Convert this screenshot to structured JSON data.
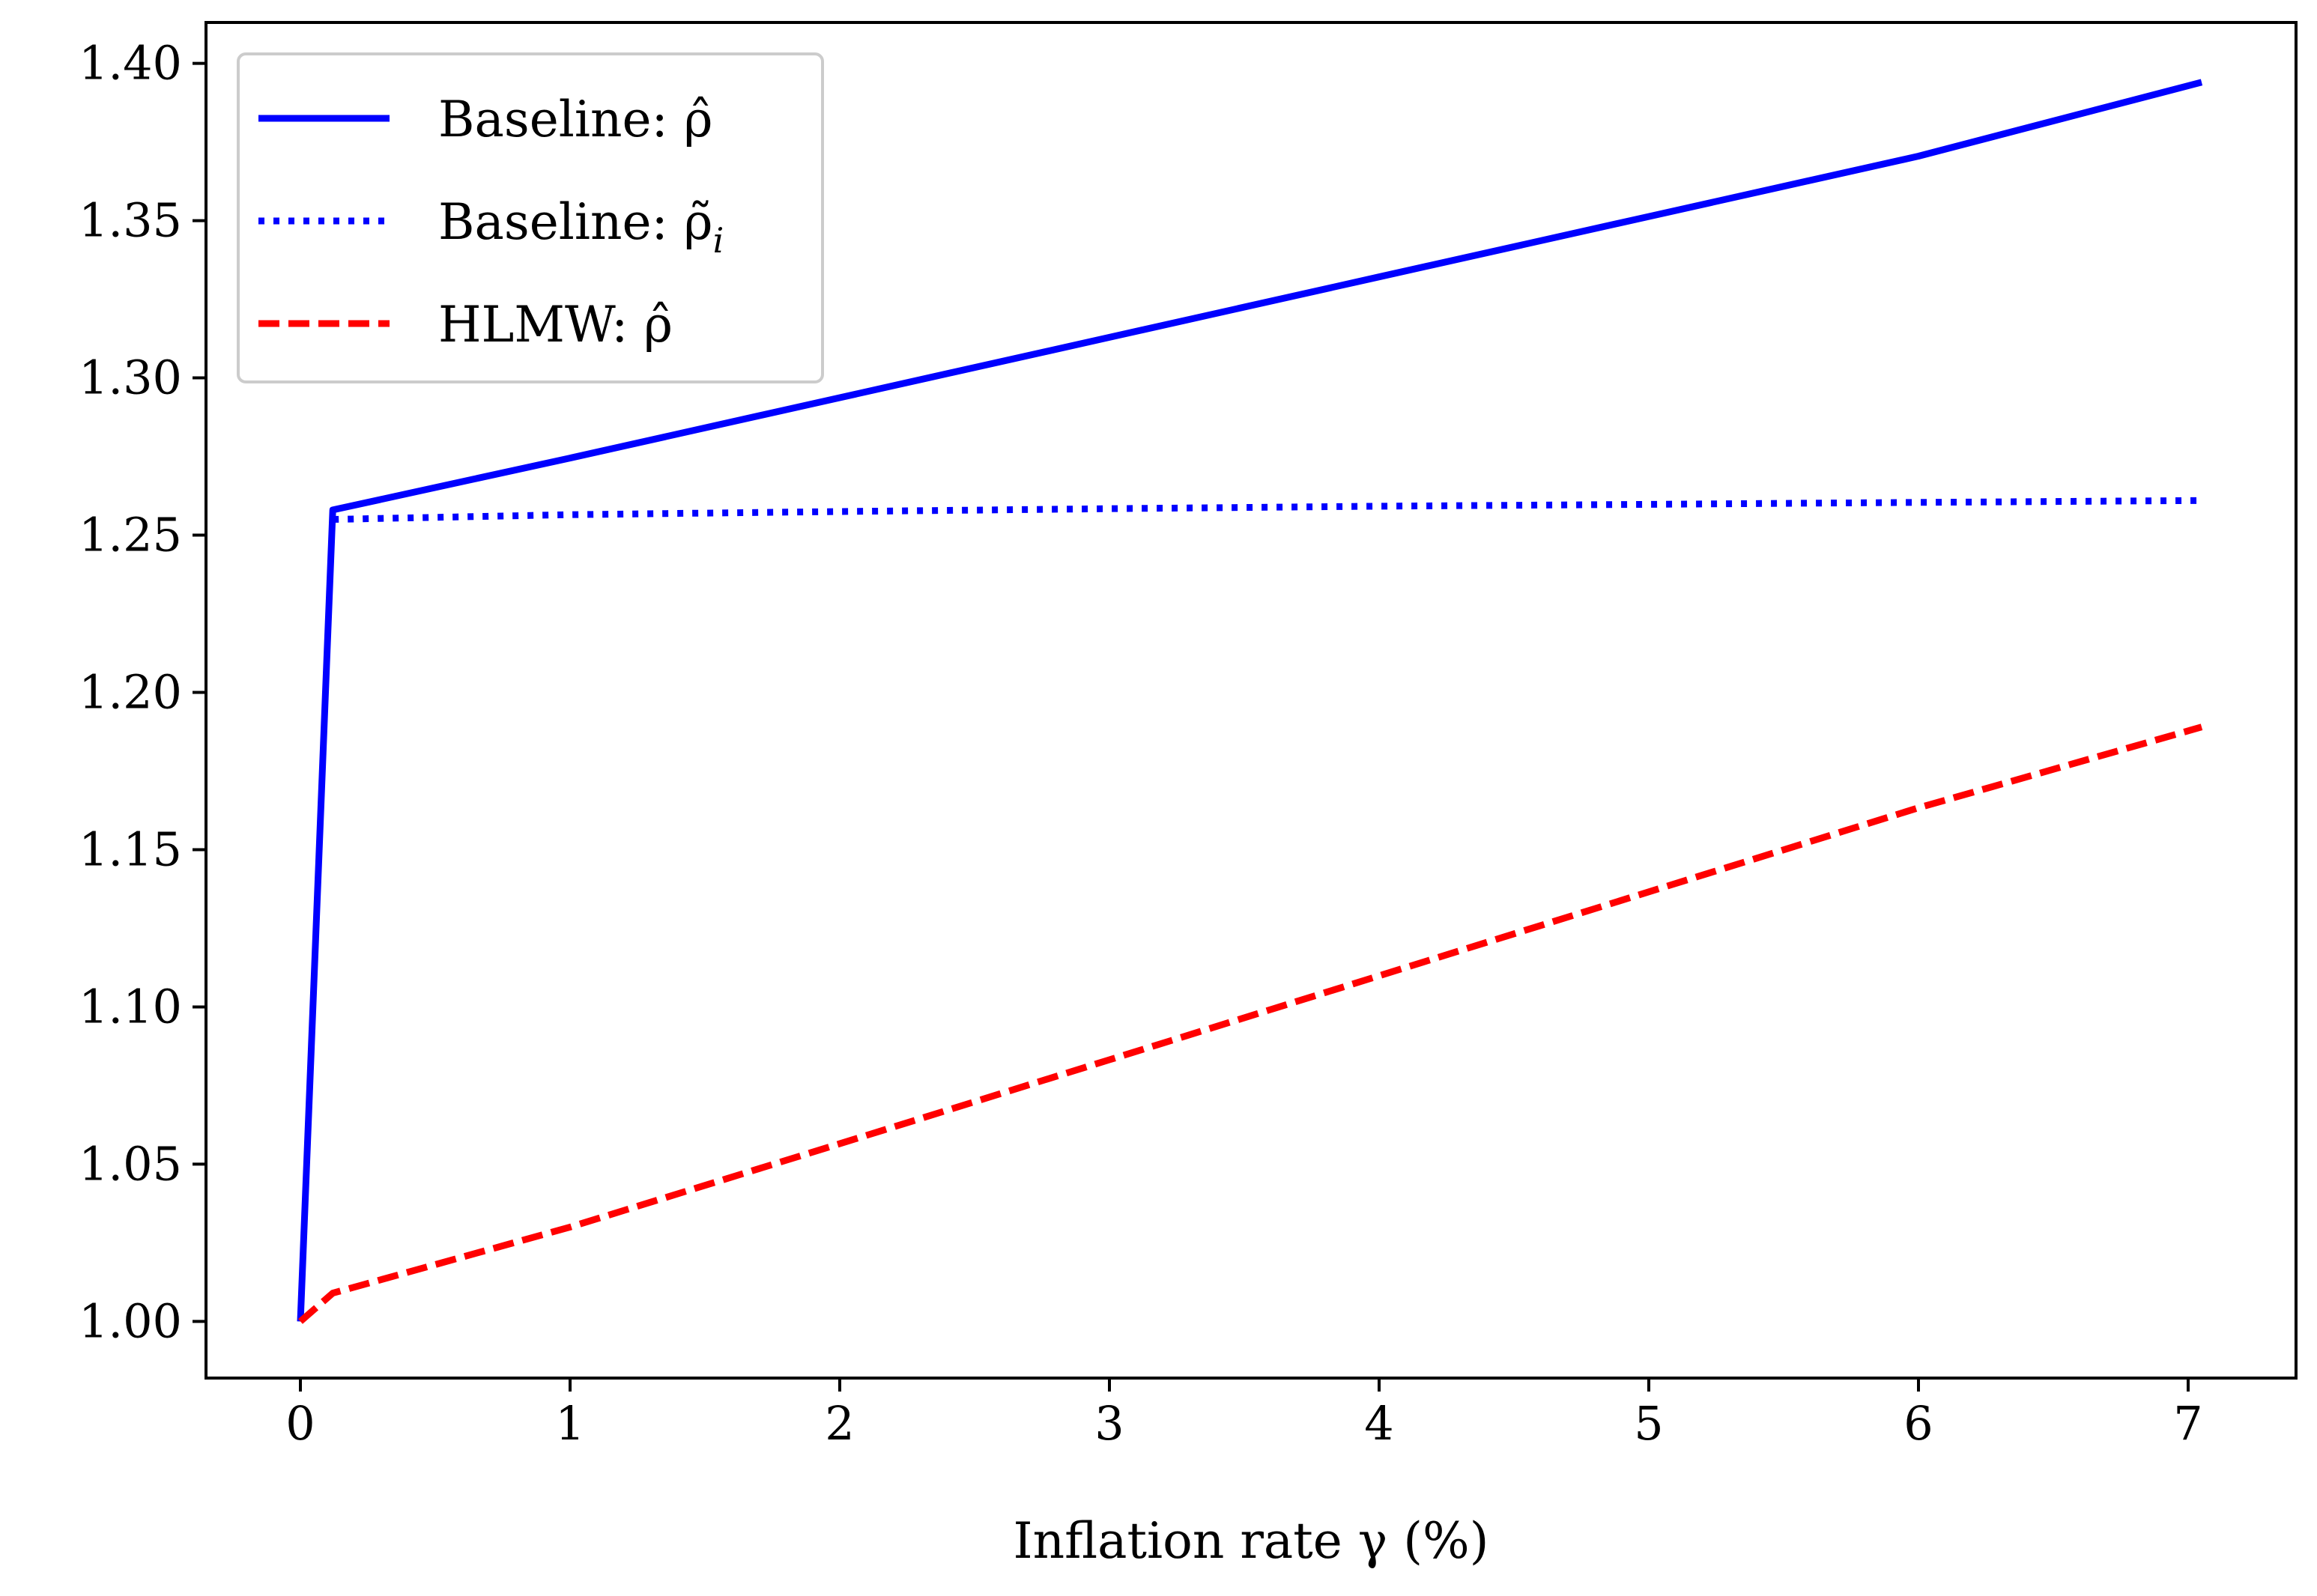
{
  "chart_data": {
    "type": "line",
    "xlabel": "Inflation rate γ (%)",
    "ylabel": "",
    "title": "",
    "xlim": [
      -0.35,
      7.4
    ],
    "ylim": [
      0.982,
      1.413
    ],
    "xticks": [
      0,
      1,
      2,
      3,
      4,
      5,
      6,
      7
    ],
    "xtick_labels": [
      "0",
      "1",
      "2",
      "3",
      "4",
      "5",
      "6",
      "7"
    ],
    "yticks": [
      1.0,
      1.05,
      1.1,
      1.15,
      1.2,
      1.25,
      1.3,
      1.35,
      1.4
    ],
    "ytick_labels": [
      "1.00",
      "1.05",
      "1.10",
      "1.15",
      "1.20",
      "1.25",
      "1.30",
      "1.35",
      "1.40"
    ],
    "grid": false,
    "legend_position": "top-left",
    "series": [
      {
        "name": "Baseline: ρ̂",
        "color": "#0000ff",
        "style": "solid",
        "x": [
          0,
          0.12,
          1,
          2,
          3,
          4,
          5,
          6,
          7.05
        ],
        "y": [
          1.0,
          1.258,
          1.2745,
          1.2937,
          1.3129,
          1.3321,
          1.3513,
          1.3705,
          1.394
        ]
      },
      {
        "name": "Baseline: ρ̃",
        "name_subscript": "i",
        "color": "#0000ff",
        "style": "dotted",
        "x": [
          0.12,
          1,
          2,
          3,
          4,
          5,
          6,
          7.05
        ],
        "y": [
          1.255,
          1.2565,
          1.2575,
          1.2584,
          1.2592,
          1.2598,
          1.2604,
          1.261
        ]
      },
      {
        "name": "HLMW: ρ̂",
        "color": "#ff0000",
        "style": "dashed",
        "x": [
          0,
          0.12,
          1,
          2,
          3,
          4,
          5,
          6,
          7.05
        ],
        "y": [
          1.0,
          1.009,
          1.03,
          1.0565,
          1.0832,
          1.1099,
          1.1366,
          1.1633,
          1.189
        ]
      }
    ]
  }
}
